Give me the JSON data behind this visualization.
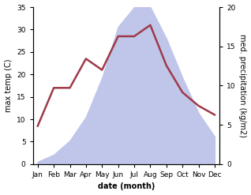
{
  "months": [
    "Jan",
    "Feb",
    "Mar",
    "Apr",
    "May",
    "Jun",
    "Jul",
    "Aug",
    "Sep",
    "Oct",
    "Nov",
    "Dec"
  ],
  "x": [
    0,
    1,
    2,
    3,
    4,
    5,
    6,
    7,
    8,
    9,
    10,
    11
  ],
  "temp": [
    8.5,
    17.0,
    17.0,
    23.5,
    21.0,
    28.5,
    28.5,
    31.0,
    22.0,
    16.0,
    13.0,
    11.0
  ],
  "precip_kg": [
    0.3,
    1.2,
    3.0,
    6.0,
    11.0,
    17.5,
    20.0,
    20.0,
    16.0,
    11.0,
    6.5,
    3.5
  ],
  "temp_color": "#9e3a47",
  "precip_fill_color": "#c0c6ea",
  "temp_ylim": [
    0,
    35
  ],
  "temp_yticks": [
    0,
    5,
    10,
    15,
    20,
    25,
    30,
    35
  ],
  "precip_ylim": [
    0,
    20
  ],
  "precip_yticks": [
    0,
    5,
    10,
    15,
    20
  ],
  "precip_scale_factor": 1.75,
  "xlabel": "date (month)",
  "ylabel_left": "max temp (C)",
  "ylabel_right": "med. precipitation (kg/m2)",
  "line_width": 1.8,
  "bg_color": "#ffffff",
  "label_fontsize": 7,
  "tick_fontsize": 6.5
}
